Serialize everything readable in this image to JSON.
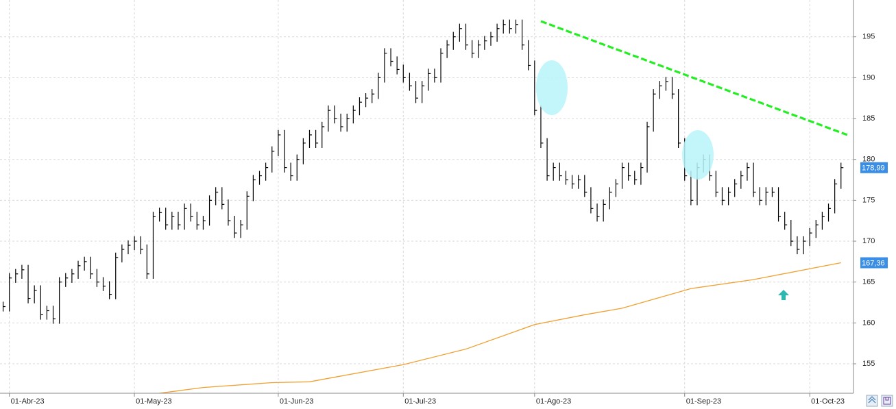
{
  "chart_data": {
    "type": "ohlc",
    "xlim": [
      -0.5,
      136
    ],
    "xticks": [
      {
        "value": 1,
        "label": "01-Abr-23"
      },
      {
        "value": 21,
        "label": "01-May-23"
      },
      {
        "value": 44,
        "label": "01-Jun-23"
      },
      {
        "value": 64,
        "label": "01-Jul-23"
      },
      {
        "value": 85,
        "label": "01-Ago-23"
      },
      {
        "value": 109,
        "label": "01-Sep-23"
      },
      {
        "value": 129,
        "label": "01-Oct-23"
      }
    ],
    "ylim": [
      151.4,
      199.5
    ],
    "yticks": [
      155,
      160,
      165,
      170,
      175,
      180,
      185,
      190,
      195
    ],
    "grid": true,
    "color": "#000000",
    "high": [
      162.6,
      166.1,
      166.6,
      167.1,
      167.1,
      164.6,
      164.6,
      162.1,
      162.1,
      165.6,
      166.1,
      166.6,
      167.6,
      168.1,
      168.1,
      166.6,
      165.6,
      165.1,
      168.6,
      169.6,
      170.1,
      170.6,
      170.6,
      169.6,
      173.6,
      174.1,
      174.1,
      173.6,
      173.6,
      174.6,
      174.6,
      173.6,
      173.1,
      175.6,
      176.6,
      176.6,
      175.1,
      173.1,
      172.6,
      176.1,
      178.1,
      178.6,
      179.6,
      181.6,
      183.6,
      183.6,
      179.6,
      180.6,
      182.6,
      183.6,
      183.6,
      184.6,
      186.6,
      186.6,
      185.6,
      185.6,
      186.6,
      187.6,
      188.1,
      188.6,
      190.6,
      193.6,
      193.6,
      192.6,
      191.6,
      190.6,
      189.6,
      189.6,
      191.1,
      191.1,
      193.6,
      194.6,
      195.6,
      196.6,
      196.6,
      194.6,
      194.6,
      195.1,
      195.6,
      196.6,
      197.1,
      197.1,
      197.1,
      197.1,
      194.6,
      192.1,
      186.6,
      182.6,
      179.6,
      179.6,
      178.6,
      178.1,
      178.1,
      178.1,
      176.6,
      174.6,
      175.1,
      176.6,
      177.6,
      179.6,
      179.6,
      178.6,
      179.6,
      184.6,
      188.6,
      189.6,
      190.1,
      190.1,
      188.6,
      182.6,
      178.6,
      179.6,
      180.6,
      180.6,
      178.6,
      176.6,
      176.6,
      177.6,
      178.6,
      179.6,
      179.6,
      176.6,
      176.6,
      176.6,
      176.6,
      173.6,
      172.6,
      170.6,
      170.6,
      171.6,
      172.6,
      173.6,
      174.6,
      177.6,
      179.6
    ],
    "low": [
      161.4,
      161.4,
      164.9,
      165.4,
      162.4,
      162.4,
      160.4,
      160.4,
      159.9,
      159.9,
      164.4,
      164.9,
      165.4,
      166.4,
      165.4,
      164.4,
      163.9,
      162.9,
      162.9,
      167.4,
      168.4,
      168.9,
      168.4,
      165.4,
      165.4,
      172.4,
      171.4,
      171.4,
      171.4,
      171.4,
      172.4,
      171.4,
      171.4,
      171.9,
      174.4,
      173.9,
      171.9,
      170.4,
      170.4,
      171.4,
      174.9,
      176.9,
      177.4,
      178.4,
      180.4,
      178.4,
      177.4,
      177.4,
      179.4,
      181.4,
      181.4,
      181.4,
      183.4,
      184.4,
      183.4,
      183.4,
      184.4,
      185.4,
      186.4,
      186.9,
      187.4,
      189.4,
      191.4,
      190.4,
      189.4,
      188.4,
      186.9,
      186.9,
      188.4,
      189.4,
      189.4,
      192.4,
      193.4,
      194.4,
      193.4,
      192.4,
      192.4,
      193.4,
      193.9,
      194.4,
      195.4,
      195.4,
      195.4,
      193.4,
      190.9,
      185.4,
      181.4,
      177.4,
      177.4,
      177.4,
      176.9,
      176.4,
      176.4,
      175.4,
      173.4,
      172.4,
      172.4,
      173.9,
      175.4,
      176.4,
      177.4,
      176.9,
      176.9,
      178.4,
      183.4,
      187.4,
      188.4,
      187.4,
      181.4,
      177.4,
      174.4,
      174.4,
      178.4,
      177.4,
      175.4,
      174.4,
      174.4,
      175.4,
      176.4,
      177.4,
      175.4,
      174.4,
      174.4,
      175.4,
      172.4,
      171.4,
      169.4,
      168.4,
      168.4,
      169.4,
      170.4,
      171.4,
      172.4,
      173.4,
      176.4
    ],
    "close": [
      162,
      165.5,
      166,
      166.5,
      163,
      164,
      161,
      161.5,
      160.5,
      165,
      165.5,
      166,
      167,
      167.5,
      166,
      165,
      164.5,
      163.5,
      168,
      169,
      169.5,
      170,
      169,
      166,
      173,
      173.5,
      172,
      173,
      172,
      174,
      173,
      172,
      172.5,
      175,
      176,
      174.5,
      172.5,
      171,
      172,
      175.5,
      177.5,
      178,
      179,
      181,
      183,
      179,
      178,
      180,
      182,
      183,
      182,
      184,
      186,
      185,
      184,
      185,
      186,
      187,
      187.5,
      188,
      190,
      193,
      192,
      191,
      190,
      189,
      187.5,
      189,
      190.5,
      190,
      193,
      194,
      195,
      196,
      194,
      193,
      194,
      194.5,
      195,
      196,
      196.5,
      196,
      196.5,
      194,
      191.5,
      186,
      182,
      178,
      179,
      178,
      177.5,
      177,
      177.5,
      176,
      174,
      173,
      174.5,
      176,
      177,
      179,
      178,
      177.5,
      179,
      184,
      188,
      189,
      189.5,
      188,
      182,
      178,
      175,
      179,
      180,
      178,
      176,
      175,
      176,
      177,
      178,
      179,
      176,
      175,
      176,
      176,
      173,
      172,
      170,
      169,
      170,
      171,
      172,
      173,
      174,
      177,
      178.99
    ],
    "moving_average": {
      "color": "#f0a030",
      "x": [
        25,
        32,
        43,
        49,
        54,
        64,
        74,
        85,
        93,
        99,
        110,
        120,
        134
      ],
      "values": [
        151.4,
        152.1,
        152.7,
        152.8,
        153.5,
        154.9,
        156.8,
        159.8,
        161,
        161.8,
        164.2,
        165.3,
        167.36
      ]
    },
    "trendline": {
      "color": "#22ee22",
      "x": [
        86,
        135
      ],
      "values": [
        196.9,
        183.0
      ]
    },
    "price_labels": [
      {
        "value": 178.99,
        "label": "178,99",
        "color": "#3a8ee6"
      },
      {
        "value": 167.36,
        "label": "167,36",
        "color": "#3a8ee6"
      }
    ]
  }
}
